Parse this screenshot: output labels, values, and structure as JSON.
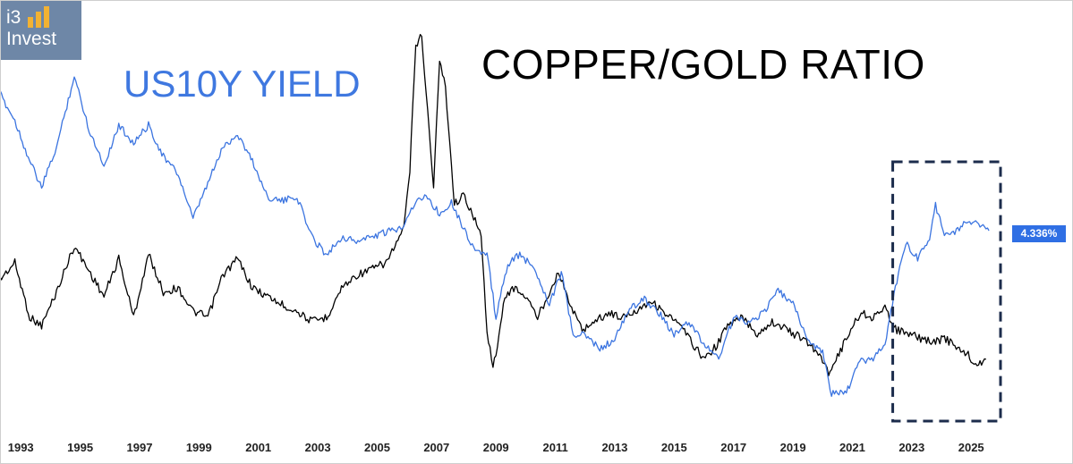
{
  "logo": {
    "line1": "i3",
    "line2": "Invest",
    "colors": {
      "background": "#6e87a7",
      "bars": "#f2b233"
    }
  },
  "titles": {
    "copper_gold": "COPPER/GOLD RATIO",
    "us10y": "US10Y YIELD"
  },
  "last_value_badge": "4.336%",
  "chart_data": {
    "type": "line",
    "title": "",
    "xlabel": "",
    "ylabel": "",
    "x_ticks": [
      "1993",
      "1995",
      "1997",
      "1999",
      "2001",
      "2003",
      "2005",
      "2007",
      "2009",
      "2011",
      "2013",
      "2015",
      "2017",
      "2019",
      "2021",
      "2023",
      "2025"
    ],
    "xlim": [
      1992.3,
      2026.2
    ],
    "grid": false,
    "legend": "none",
    "colors": {
      "copper_gold": "#000000",
      "us10y": "#3b74e0",
      "highlight_box": "#1c2c4c",
      "badge": "#2f6fe4"
    },
    "highlight_box": {
      "x_start": 2022.3,
      "x_end": 2026.2,
      "style": "dashed"
    },
    "series": [
      {
        "key": "copper_gold",
        "axis": "ratio (unscaled)",
        "x": [
          1992.3,
          1992.8,
          1993.3,
          1993.7,
          1994.2,
          1994.8,
          1995.3,
          1995.8,
          1996.3,
          1996.8,
          1997.3,
          1997.8,
          1998.3,
          1998.8,
          1999.3,
          1999.8,
          2000.3,
          2000.8,
          2001.3,
          2001.8,
          2002.3,
          2002.8,
          2003.3,
          2003.8,
          2004.3,
          2004.8,
          2005.3,
          2005.6,
          2005.9,
          2006.1,
          2006.3,
          2006.5,
          2006.7,
          2006.9,
          2007.1,
          2007.3,
          2007.6,
          2007.9,
          2008.2,
          2008.5,
          2008.7,
          2008.9,
          2009.1,
          2009.3,
          2009.6,
          2010.0,
          2010.4,
          2010.8,
          2011.1,
          2011.5,
          2011.9,
          2012.3,
          2012.8,
          2013.3,
          2013.8,
          2014.2,
          2014.7,
          2015.2,
          2015.7,
          2016.0,
          2016.4,
          2016.8,
          2017.3,
          2017.8,
          2018.3,
          2018.8,
          2019.3,
          2019.8,
          2020.2,
          2020.6,
          2021.0,
          2021.3,
          2021.7,
          2022.1,
          2022.5,
          2022.9,
          2023.3,
          2023.7,
          2024.1,
          2024.5,
          2024.9,
          2025.1,
          2025.3,
          2025.5
        ],
        "values": [
          1.0,
          1.2,
          0.55,
          0.45,
          0.85,
          1.4,
          1.1,
          0.8,
          1.25,
          0.55,
          1.3,
          0.85,
          0.9,
          0.62,
          0.55,
          1.05,
          1.25,
          0.9,
          0.8,
          0.7,
          0.62,
          0.5,
          0.55,
          0.9,
          1.05,
          1.12,
          1.2,
          1.4,
          1.6,
          2.3,
          3.8,
          3.9,
          3.0,
          2.1,
          3.6,
          3.3,
          1.9,
          2.0,
          1.8,
          1.5,
          0.4,
          -0.05,
          0.3,
          0.8,
          0.9,
          0.8,
          0.55,
          0.85,
          1.1,
          0.7,
          0.4,
          0.5,
          0.6,
          0.55,
          0.65,
          0.75,
          0.6,
          0.45,
          0.2,
          0.05,
          0.2,
          0.45,
          0.55,
          0.35,
          0.5,
          0.4,
          0.3,
          0.15,
          -0.1,
          0.15,
          0.45,
          0.6,
          0.55,
          0.65,
          0.4,
          0.35,
          0.3,
          0.25,
          0.3,
          0.2,
          0.1,
          0.0,
          0.0,
          0.05
        ]
      },
      {
        "key": "us10y",
        "axis": "yield (unscaled)",
        "x": [
          1992.3,
          1992.8,
          1993.3,
          1993.7,
          1994.2,
          1994.8,
          1995.3,
          1995.8,
          1996.3,
          1996.8,
          1997.3,
          1997.8,
          1998.3,
          1998.8,
          1999.3,
          1999.8,
          2000.3,
          2000.8,
          2001.3,
          2001.8,
          2002.3,
          2002.8,
          2003.3,
          2003.8,
          2004.3,
          2004.8,
          2005.3,
          2005.8,
          2006.3,
          2006.7,
          2007.1,
          2007.5,
          2007.9,
          2008.3,
          2008.7,
          2009.0,
          2009.4,
          2009.8,
          2010.3,
          2010.8,
          2011.2,
          2011.6,
          2012.0,
          2012.5,
          2013.0,
          2013.5,
          2014.0,
          2014.5,
          2015.0,
          2015.5,
          2016.0,
          2016.5,
          2017.0,
          2017.5,
          2018.0,
          2018.5,
          2019.0,
          2019.5,
          2020.0,
          2020.3,
          2020.8,
          2021.2,
          2021.7,
          2022.1,
          2022.4,
          2022.8,
          2023.2,
          2023.6,
          2023.8,
          2024.1,
          2024.5,
          2024.9,
          2025.1,
          2025.4,
          2025.6
        ],
        "values": [
          7.4,
          6.8,
          5.9,
          5.3,
          6.2,
          7.8,
          6.6,
          5.8,
          6.7,
          6.3,
          6.7,
          6.0,
          5.6,
          4.6,
          5.4,
          6.2,
          6.5,
          5.9,
          5.1,
          5.0,
          5.1,
          4.2,
          3.8,
          4.2,
          4.1,
          4.2,
          4.3,
          4.4,
          5.0,
          5.1,
          4.7,
          5.0,
          4.4,
          3.9,
          3.8,
          2.4,
          3.6,
          3.8,
          3.5,
          2.7,
          3.4,
          2.0,
          2.0,
          1.7,
          1.9,
          2.6,
          2.8,
          2.5,
          2.0,
          2.3,
          1.8,
          1.5,
          2.4,
          2.3,
          2.5,
          3.0,
          2.7,
          1.9,
          1.6,
          0.7,
          0.7,
          1.4,
          1.5,
          1.8,
          2.9,
          4.1,
          3.7,
          4.2,
          4.9,
          4.3,
          4.3,
          4.6,
          4.5,
          4.5,
          4.34
        ]
      }
    ]
  }
}
